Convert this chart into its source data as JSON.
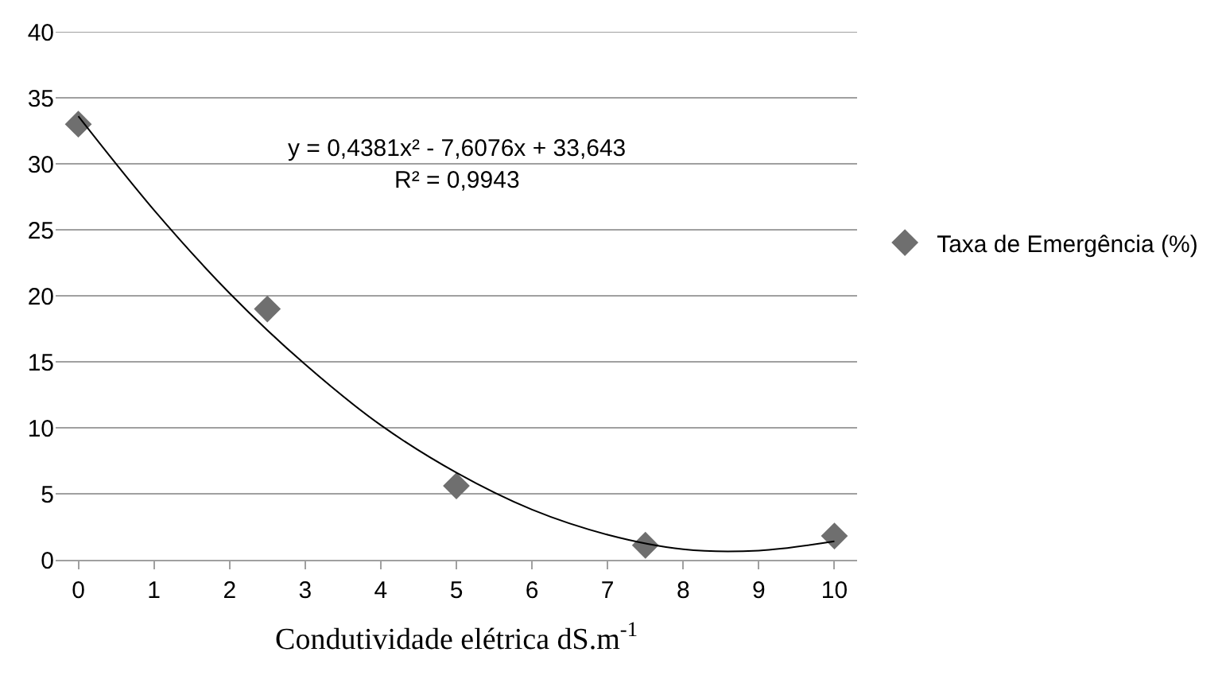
{
  "chart_data": {
    "type": "scatter",
    "xlabel": "Condutividade elétrica dS.m$^{-1}$",
    "x": [
      0,
      2.5,
      5,
      7.5,
      10
    ],
    "series": [
      {
        "name": "Taxa de Emergência (%)",
        "color": "#6f6f6f",
        "values": [
          33,
          19,
          5.6,
          1.1,
          1.8
        ],
        "marker": "diamond"
      },
      {
        "type": "line",
        "color": "#000000",
        "x": [
          0,
          1,
          2,
          3,
          4,
          5,
          6,
          7,
          8,
          9,
          10
        ],
        "values": [
          33.6,
          26.5,
          20.2,
          14.8,
          10.2,
          6.6,
          3.8,
          1.9,
          0.8,
          0.7,
          1.4
        ]
      }
    ],
    "xlim": [
      -0.3,
      10.3
    ],
    "xticks": [
      0,
      1,
      2,
      3,
      4,
      5,
      6,
      7,
      8,
      9,
      10
    ],
    "ylim": [
      0,
      40
    ],
    "yticks": [
      0,
      5,
      10,
      15,
      20,
      25,
      30,
      35,
      40
    ],
    "grid": "y",
    "legend": "right",
    "annotations": [
      "y = 0,4381x² - 7,6076x + 33,643",
      "R² = 0,9943"
    ]
  }
}
